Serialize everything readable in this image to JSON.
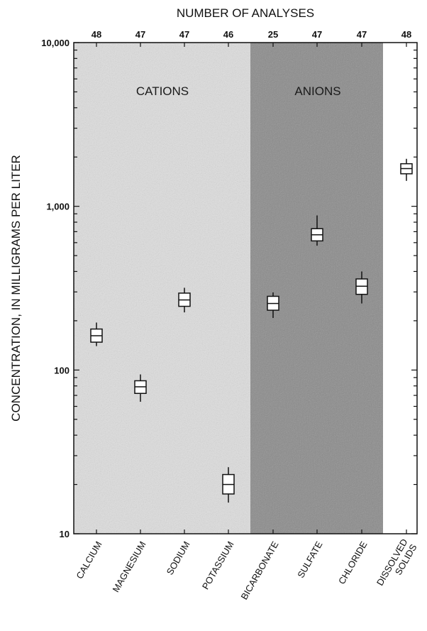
{
  "chart_data": {
    "type": "box",
    "y_scale": "log",
    "ylim": [
      10,
      10000
    ],
    "ylabel": "CONCENTRATION, IN MILLIGRAMS PER LITER",
    "top_axis_title": "NUMBER OF ANALYSES",
    "y_ticks": [
      {
        "value": 10,
        "label": "10"
      },
      {
        "value": 100,
        "label": "100"
      },
      {
        "value": 1000,
        "label": "1,000"
      },
      {
        "value": 10000,
        "label": "10,000"
      }
    ],
    "groups": [
      {
        "label": "CATIONS",
        "shade": "#dedede",
        "members": [
          "CALCIUM",
          "MAGNESIUM",
          "SODIUM",
          "POTASSIUM"
        ]
      },
      {
        "label": "ANIONS",
        "shade": "#8a8a8a",
        "members": [
          "BICARBONATE",
          "SULFATE",
          "CHLORIDE"
        ]
      }
    ],
    "categories": [
      {
        "label": "CALCIUM",
        "count": "48",
        "whisker_low": 140,
        "q1": 148,
        "median": 162,
        "q3": 178,
        "whisker_high": 195
      },
      {
        "label": "MAGNESIUM",
        "count": "47",
        "whisker_low": 64,
        "q1": 72,
        "median": 79,
        "q3": 86,
        "whisker_high": 94
      },
      {
        "label": "SODIUM",
        "count": "47",
        "whisker_low": 225,
        "q1": 245,
        "median": 268,
        "q3": 295,
        "whisker_high": 318
      },
      {
        "label": "POTASSIUM",
        "count": "46",
        "whisker_low": 15.5,
        "q1": 17.5,
        "median": 20,
        "q3": 23,
        "whisker_high": 25.5
      },
      {
        "label": "BICARBONATE",
        "count": "25",
        "whisker_low": 208,
        "q1": 232,
        "median": 255,
        "q3": 282,
        "whisker_high": 298
      },
      {
        "label": "SULFATE",
        "count": "47",
        "whisker_low": 575,
        "q1": 615,
        "median": 670,
        "q3": 730,
        "whisker_high": 880
      },
      {
        "label": "CHLORIDE",
        "count": "47",
        "whisker_low": 255,
        "q1": 290,
        "median": 325,
        "q3": 360,
        "whisker_high": 400
      },
      {
        "label": "DISSOLVED\nSOLIDS",
        "count": "48",
        "whisker_low": 1430,
        "q1": 1580,
        "median": 1700,
        "q3": 1820,
        "whisker_high": 1950
      }
    ],
    "grid": false,
    "legend": "none"
  },
  "colors": {
    "cations_shade": "#dedede",
    "anions_shade": "#8c8c8c",
    "box_fill": "#ffffff",
    "stroke": "#111111"
  }
}
